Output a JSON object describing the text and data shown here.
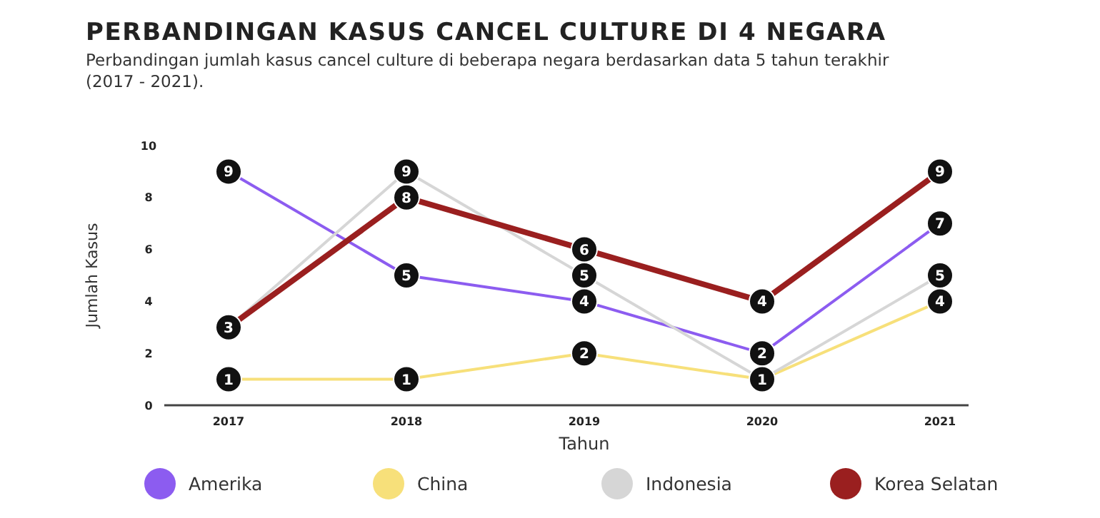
{
  "chart_data": {
    "type": "line",
    "title": "PERBANDINGAN KASUS CANCEL CULTURE DI 4 NEGARA",
    "subtitle": "Perbandingan jumlah kasus cancel culture di beberapa negara  berdasarkan data 5 tahun terakhir (2017 - 2021).",
    "xlabel": "Tahun",
    "ylabel": "Jumlah Kasus",
    "categories": [
      "2017",
      "2018",
      "2019",
      "2020",
      "2021"
    ],
    "ylim": [
      0,
      10
    ],
    "yticks": [
      0,
      2,
      4,
      6,
      8,
      10
    ],
    "legend": "bottom",
    "marker": "circle",
    "line_style": "solid",
    "series": [
      {
        "name": "Amerika",
        "color": "#8c5cf0",
        "values": [
          9,
          5,
          4,
          2,
          7
        ],
        "value_labels": [
          "9",
          "5",
          "4",
          "2",
          "7"
        ]
      },
      {
        "name": "China",
        "color": "#f7e07a",
        "values": [
          1,
          1,
          2,
          1,
          4
        ],
        "value_labels": [
          "1",
          "1",
          "2",
          "1",
          "4"
        ]
      },
      {
        "name": "Indonesia",
        "color": "#d6d6d6",
        "values": [
          3,
          9,
          5,
          1,
          5
        ],
        "value_labels": [
          null,
          "9",
          "5",
          null,
          "5"
        ]
      },
      {
        "name": "Korea Selatan",
        "color": "#9a1f1f",
        "values": [
          3,
          8,
          6,
          4,
          9
        ],
        "value_labels": [
          "3",
          "8",
          "6",
          "4",
          "9"
        ]
      }
    ]
  }
}
